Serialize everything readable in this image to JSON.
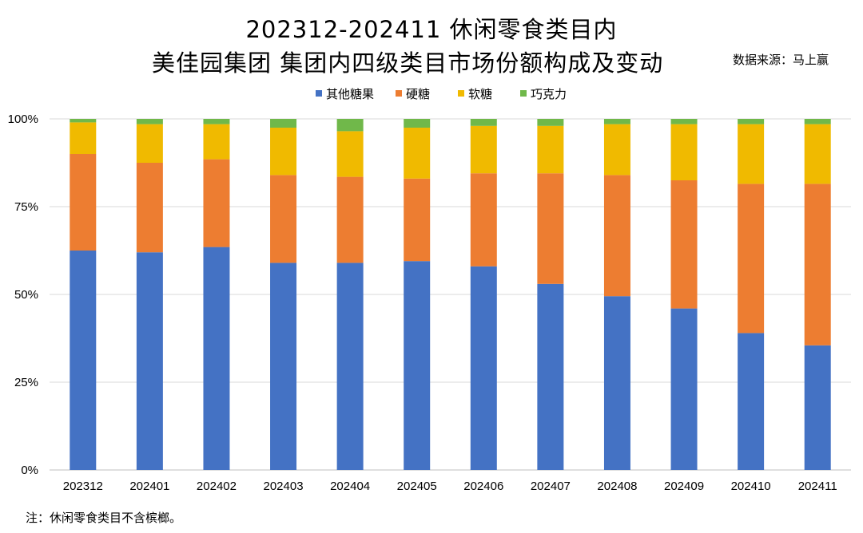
{
  "header": {
    "title_line1": "202312-202411 休闲零食类目内",
    "title_line2": "美佳园集团 集团内四级类目市场份额构成及变动",
    "source": "数据来源：马上赢"
  },
  "footer": {
    "note": "注：休闲零食类目不含槟榔。"
  },
  "colors": {
    "series": [
      "#4472C4",
      "#ED7D31",
      "#F0BA00",
      "#70B84A"
    ],
    "grid": "#d9d9d9",
    "axis": "#bfbfbf"
  },
  "chart_data": {
    "type": "bar",
    "stacked": true,
    "percent": true,
    "categories": [
      "202312",
      "202401",
      "202402",
      "202403",
      "202404",
      "202405",
      "202406",
      "202407",
      "202408",
      "202409",
      "202410",
      "202411"
    ],
    "y_ticks": [
      "0%",
      "25%",
      "50%",
      "75%",
      "100%"
    ],
    "ylim": [
      0,
      100
    ],
    "grid": true,
    "legend_position": "top",
    "series": [
      {
        "name": "其他糖果",
        "values": [
          62.5,
          62.0,
          63.5,
          59.0,
          59.0,
          59.5,
          58.0,
          53.0,
          49.5,
          46.0,
          39.0,
          35.5
        ]
      },
      {
        "name": "硬糖",
        "values": [
          27.5,
          25.5,
          25.0,
          25.0,
          24.5,
          23.5,
          26.5,
          31.5,
          34.5,
          36.5,
          42.5,
          46.0
        ]
      },
      {
        "name": "软糖",
        "values": [
          9.0,
          11.0,
          10.0,
          13.5,
          13.0,
          14.5,
          13.5,
          13.5,
          14.5,
          16.0,
          17.0,
          17.0
        ]
      },
      {
        "name": "巧克力",
        "values": [
          1.0,
          1.5,
          1.5,
          2.5,
          3.5,
          2.5,
          2.0,
          2.0,
          1.5,
          1.5,
          1.5,
          1.5
        ]
      }
    ]
  }
}
